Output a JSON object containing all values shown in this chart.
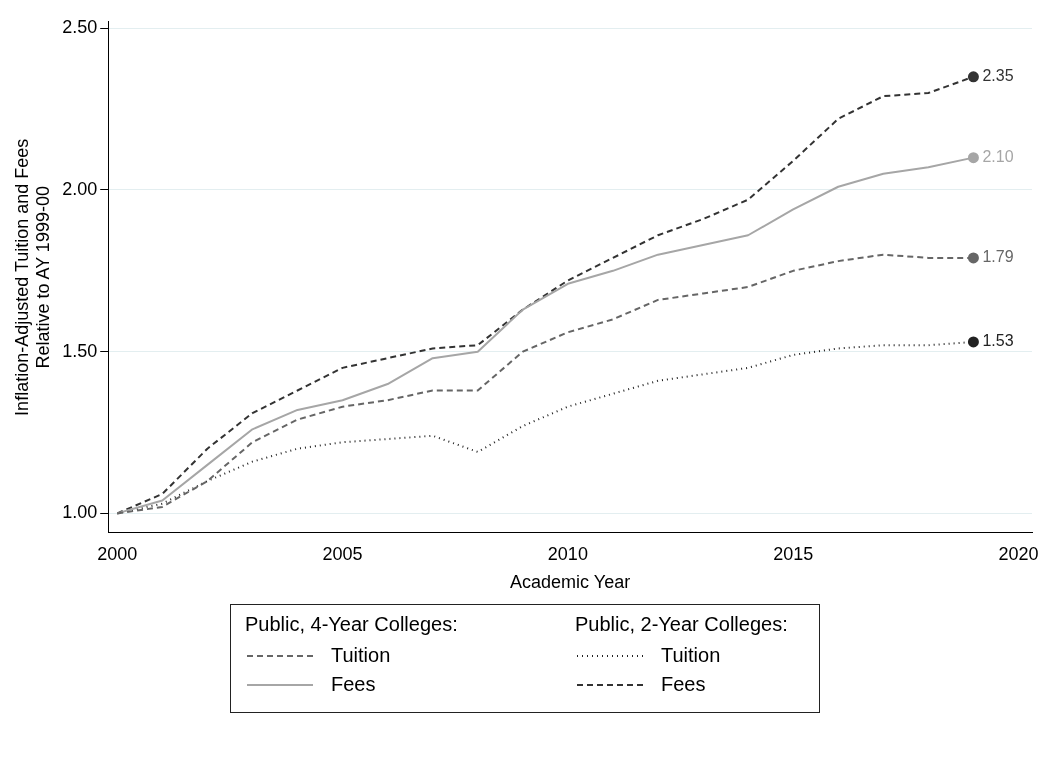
{
  "chart_data": {
    "type": "line",
    "xlabel": "Academic Year",
    "ylabel": "Inflation-Adjusted Tuition and Fees\nRelative to AY 1999-00",
    "x": [
      2000,
      2001,
      2002,
      2003,
      2004,
      2005,
      2006,
      2007,
      2008,
      2009,
      2010,
      2011,
      2012,
      2013,
      2014,
      2015,
      2016,
      2017,
      2018,
      2019
    ],
    "xlim": [
      1999.8,
      2020.3
    ],
    "xticks": [
      2000,
      2005,
      2010,
      2015,
      2020
    ],
    "ylim": [
      0.94,
      2.52
    ],
    "yticks": [
      {
        "value": 1,
        "label": "1.00"
      },
      {
        "value": 1.5,
        "label": "1.50"
      },
      {
        "value": 2,
        "label": "2.00"
      },
      {
        "value": 2.5,
        "label": "2.50"
      }
    ],
    "grid": "y",
    "legend": "bottom",
    "annotations": [
      "Public, 4-Year Colleges:",
      "Public, 2-Year Colleges:"
    ],
    "series": [
      {
        "name": "Tuition",
        "color": "#666666",
        "line_style": "dashed",
        "values": [
          1.0,
          1.02,
          1.1,
          1.22,
          1.29,
          1.33,
          1.35,
          1.38,
          1.38,
          1.5,
          1.56,
          1.6,
          1.66,
          1.68,
          1.7,
          1.75,
          1.78,
          1.8,
          1.79,
          1.79
        ],
        "value_labels": [
          null,
          null,
          null,
          null,
          null,
          null,
          null,
          null,
          null,
          null,
          null,
          null,
          null,
          null,
          null,
          null,
          null,
          null,
          null,
          "1.79"
        ]
      },
      {
        "name": "Fees",
        "color": "#a6a6a6",
        "line_style": "solid",
        "values": [
          1.0,
          1.04,
          1.15,
          1.26,
          1.32,
          1.35,
          1.4,
          1.48,
          1.5,
          1.63,
          1.71,
          1.75,
          1.8,
          1.83,
          1.86,
          1.94,
          2.01,
          2.05,
          2.07,
          2.1
        ],
        "value_labels": [
          null,
          null,
          null,
          null,
          null,
          null,
          null,
          null,
          null,
          null,
          null,
          null,
          null,
          null,
          null,
          null,
          null,
          null,
          null,
          "2.10"
        ]
      },
      {
        "name": "Tuition",
        "color": "#222222",
        "line_style": "dotted",
        "values": [
          1.0,
          1.03,
          1.1,
          1.16,
          1.2,
          1.22,
          1.23,
          1.24,
          1.19,
          1.27,
          1.33,
          1.37,
          1.41,
          1.43,
          1.45,
          1.49,
          1.51,
          1.52,
          1.52,
          1.53
        ],
        "value_labels": [
          null,
          null,
          null,
          null,
          null,
          null,
          null,
          null,
          null,
          null,
          null,
          null,
          null,
          null,
          null,
          null,
          null,
          null,
          null,
          "1.53"
        ]
      },
      {
        "name": "Fees",
        "color": "#333333",
        "line_style": "dashed",
        "values": [
          1.0,
          1.06,
          1.2,
          1.31,
          1.38,
          1.45,
          1.48,
          1.51,
          1.52,
          1.63,
          1.72,
          1.79,
          1.86,
          1.91,
          1.97,
          2.09,
          2.22,
          2.29,
          2.3,
          2.35
        ],
        "value_labels": [
          null,
          null,
          null,
          null,
          null,
          null,
          null,
          null,
          null,
          null,
          null,
          null,
          null,
          null,
          null,
          null,
          null,
          null,
          null,
          "2.35"
        ]
      }
    ]
  }
}
